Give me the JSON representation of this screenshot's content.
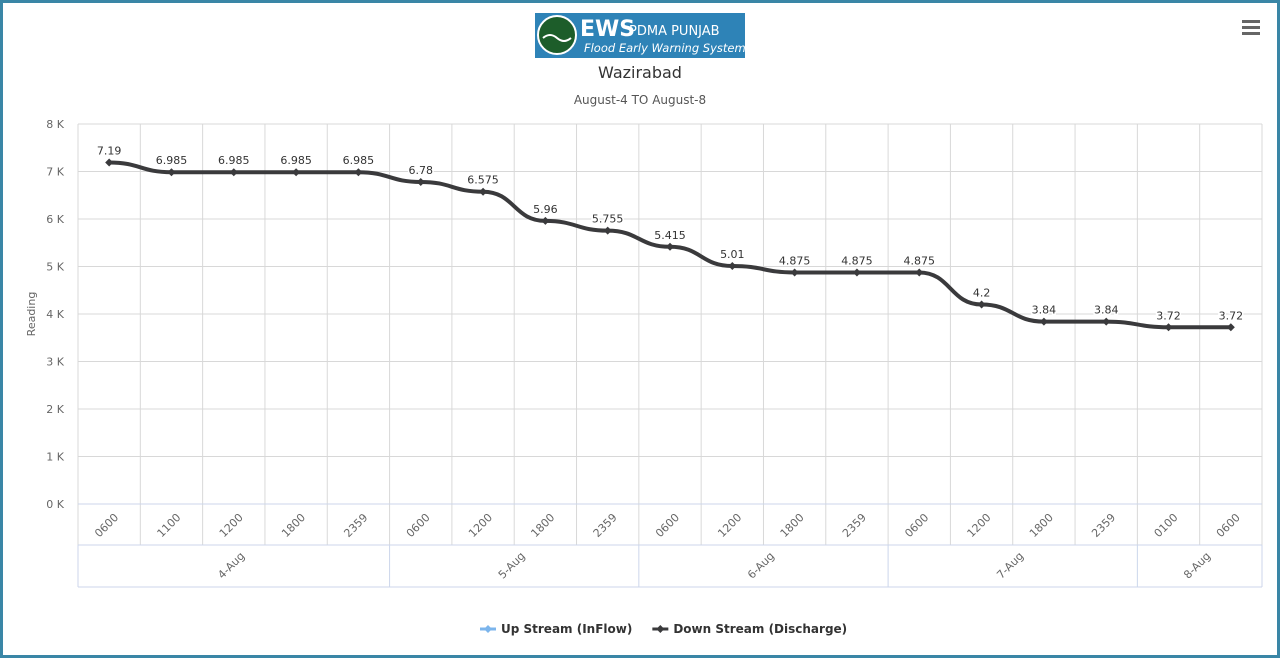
{
  "header": {
    "logo_main": "EWS",
    "logo_org": "PDMA PUNJAB",
    "logo_tagline": "Flood Early Warning System"
  },
  "chart_data": {
    "type": "line",
    "title": "Wazirabad",
    "subtitle": "August-4 TO August-8",
    "y_label": "Reading",
    "groups": [
      {
        "name": "4-Aug",
        "categories": [
          "0600",
          "1100",
          "1200",
          "1800",
          "2359"
        ]
      },
      {
        "name": "5-Aug",
        "categories": [
          "0600",
          "1200",
          "1800",
          "2359"
        ]
      },
      {
        "name": "6-Aug",
        "categories": [
          "0600",
          "1200",
          "1800",
          "2359"
        ]
      },
      {
        "name": "7-Aug",
        "categories": [
          "0600",
          "1200",
          "1800",
          "2359"
        ]
      },
      {
        "name": "8-Aug",
        "categories": [
          "0100",
          "0600"
        ]
      }
    ],
    "series": [
      {
        "name": "Up Stream (InFlow)",
        "color": "#7cb5ec",
        "values": [
          null,
          null,
          null,
          null,
          null,
          null,
          null,
          null,
          null,
          null,
          null,
          null,
          null,
          null,
          null,
          null,
          null,
          null,
          null
        ]
      },
      {
        "name": "Down Stream (Discharge)",
        "color": "#3a3a3c",
        "values": [
          7.19,
          6.985,
          6.985,
          6.985,
          6.985,
          6.78,
          6.575,
          5.96,
          5.755,
          5.415,
          5.01,
          4.875,
          4.875,
          4.875,
          4.2,
          3.84,
          3.84,
          3.72,
          3.72
        ]
      }
    ],
    "ylim": [
      0,
      8
    ],
    "yticks": [
      {
        "value": 0,
        "label": "0 K"
      },
      {
        "value": 1,
        "label": "1 K"
      },
      {
        "value": 2,
        "label": "2 K"
      },
      {
        "value": 3,
        "label": "3 K"
      },
      {
        "value": 4,
        "label": "4 K"
      },
      {
        "value": 5,
        "label": "5 K"
      },
      {
        "value": 6,
        "label": "6 K"
      },
      {
        "value": 7,
        "label": "7 K"
      },
      {
        "value": 8,
        "label": "8 K"
      }
    ],
    "grid": true,
    "data_labels": true
  }
}
